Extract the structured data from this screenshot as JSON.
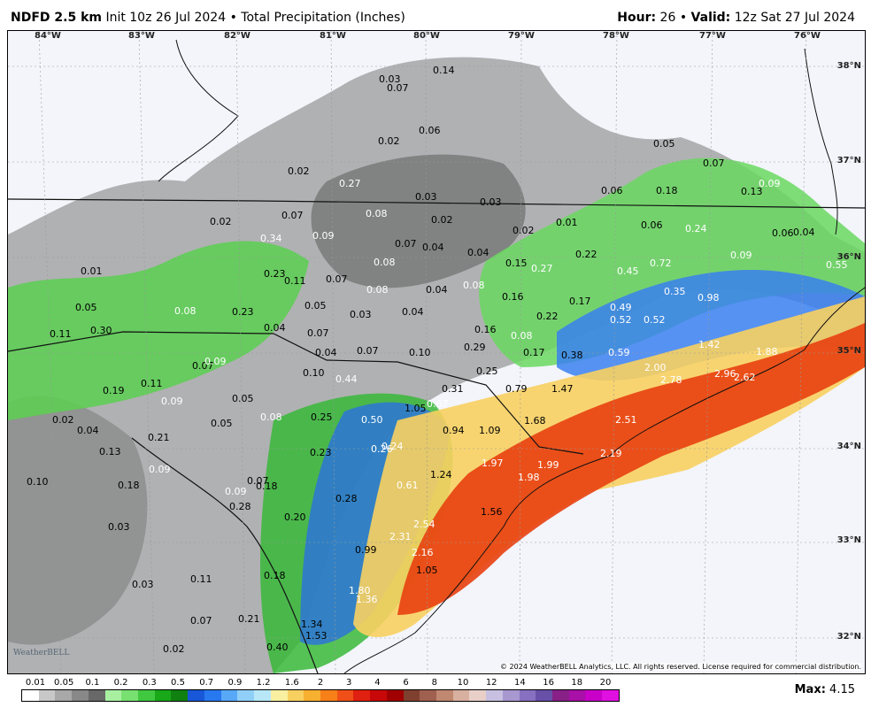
{
  "header": {
    "model": "NDFD 2.5 km",
    "init": "Init 10z 26 Jul 2024",
    "bullet": "•",
    "product": "Total Precipitation (Inches)",
    "hour_label": "Hour:",
    "hour_value": "26",
    "valid_label": "Valid:",
    "valid_value": "12z Sat 27 Jul 2024"
  },
  "map": {
    "lon_labels": [
      "84°W",
      "83°W",
      "82°W",
      "81°W",
      "80°W",
      "79°W",
      "78°W",
      "77°W",
      "76°W"
    ],
    "lat_labels": [
      "38°N",
      "37°N",
      "36°N",
      "35°N",
      "34°N",
      "33°N",
      "32°N"
    ],
    "values": [
      "0.14",
      "0.03",
      "0.07",
      "0.02",
      "0.06",
      "0.05",
      "0.02",
      "0.27",
      "0.03",
      "0.03",
      "0.06",
      "0.18",
      "0.07",
      "0.13",
      "0.09",
      "0.08",
      "0.02",
      "0.07",
      "0.02",
      "0.34",
      "0.09",
      "0.08",
      "0.07",
      "0.04",
      "0.02",
      "0.01",
      "0.06",
      "0.24",
      "0.06",
      "0.04",
      "0.01",
      "0.23",
      "0.11",
      "0.07",
      "0.08",
      "0.04",
      "0.04",
      "0.15",
      "0.27",
      "0.22",
      "0.45",
      "0.72",
      "0.09",
      "0.55",
      "0.05",
      "0.08",
      "0.23",
      "0.05",
      "0.03",
      "0.04",
      "0.08",
      "0.16",
      "0.17",
      "0.49",
      "0.35",
      "0.98",
      "0.11",
      "0.30",
      "0.04",
      "0.07",
      "0.22",
      "0.52",
      "0.52",
      "0.16",
      "0.08",
      "0.04",
      "0.07",
      "0.10",
      "0.29",
      "0.17",
      "0.38",
      "0.59",
      "1.42",
      "1.88",
      "0.07",
      "0.09",
      "0.10",
      "0.44",
      "0.25",
      "2.00",
      "2.78",
      "2.96",
      "2.62",
      "0.11",
      "0.19",
      "0.09",
      "0.05",
      "0.31",
      "0.79",
      "1.47",
      "0.02",
      "0.04",
      "0.05",
      "0.08",
      "0.25",
      "0.50",
      "1.05",
      "0.67",
      "1.68",
      "2.51",
      "0.21",
      "0.94",
      "1.09",
      "0.09",
      "0.13",
      "0.23",
      "0.26",
      "0.24",
      "1.97",
      "1.99",
      "2.19",
      "0.10",
      "0.18",
      "0.09",
      "0.07",
      "0.18",
      "0.61",
      "1.24",
      "1.98",
      "0.28",
      "0.28",
      "1.56",
      "0.03",
      "0.20",
      "2.54",
      "2.31",
      "0.99",
      "2.16",
      "0.11",
      "0.18",
      "1.05",
      "0.03",
      "1.80",
      "1.36",
      "0.21",
      "0.07",
      "1.34",
      "1.53",
      "0.02",
      "0.40"
    ],
    "copyright": "© 2024 WeatherBELL Analytics, LLC. All rights reserved. License required for commercial distribution.",
    "logo_text": "WeatherBELL"
  },
  "legend": {
    "ticks": [
      "0.01",
      "0.05",
      "0.1",
      "0.2",
      "0.3",
      "0.5",
      "0.7",
      "0.9",
      "1.2",
      "1.6",
      "2",
      "3",
      "4",
      "6",
      "8",
      "10",
      "12",
      "14",
      "16",
      "18",
      "20"
    ],
    "colors": [
      "#ffffff",
      "#c8c8c8",
      "#a8a8a8",
      "#888888",
      "#686868",
      "#a8f0a0",
      "#78e070",
      "#40c840",
      "#18a818",
      "#108010",
      "#1858d8",
      "#2878f0",
      "#58a8f8",
      "#90d0f8",
      "#b8e8f8",
      "#f8f0a0",
      "#f8d060",
      "#f8b030",
      "#f88018",
      "#f05018",
      "#e02010",
      "#c80808",
      "#a00000",
      "#804030",
      "#a06050",
      "#c08870",
      "#d8b0a0",
      "#e8d0c8",
      "#c8c0e0",
      "#a898d0",
      "#8870c0",
      "#6850a8",
      "#882088",
      "#a810a8",
      "#c800c8",
      "#e010e0"
    ],
    "max_label": "Max:",
    "max_value": "4.15"
  }
}
